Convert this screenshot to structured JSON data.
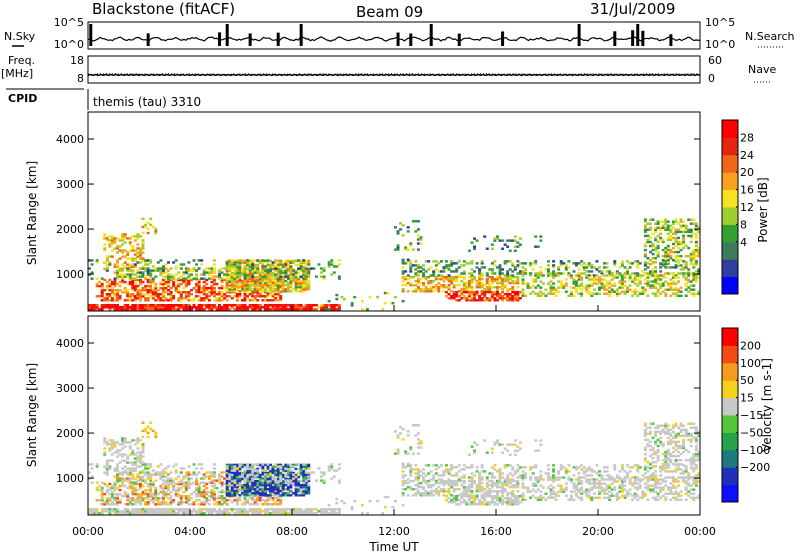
{
  "header": {
    "station": "Blackstone (fitACF)",
    "beam": "Beam 09",
    "date": "31/Jul/2009"
  },
  "side_labels": {
    "nsky": "N.Sky",
    "freq": "Freq.",
    "freq_unit": "[MHz]",
    "cpid": "CPID",
    "nsearch": "N.Search",
    "nave": "Nave"
  },
  "cpid_text": "themis (tau) 3310",
  "chart_data": [
    {
      "type": "line",
      "panel": "noise",
      "left_ticks": [
        "10^5",
        "10^0"
      ],
      "right_ticks": [
        "10^5",
        "10^0"
      ],
      "series": [
        {
          "name": "N.Sky"
        },
        {
          "name": "N.Search"
        }
      ],
      "description_level": "Baseline noise about 10^1, spikes toward 10^5"
    },
    {
      "type": "line",
      "panel": "freq_nave",
      "left_ticks": [
        "18",
        "8"
      ],
      "right_ticks": [
        "60",
        "0"
      ],
      "ylim_left": [
        8,
        18
      ],
      "ylim_right": [
        0,
        60
      ],
      "series": [
        {
          "name": "Freq."
        },
        {
          "name": "Nave"
        }
      ]
    },
    {
      "type": "heatmap",
      "panel": "power",
      "ylabel": "Slant Range [km]",
      "y_ticks": [
        "4000",
        "3000",
        "2000",
        "1000"
      ],
      "ylim": [
        180,
        4600
      ],
      "colorbar_label": "Power [dB]",
      "colorbar_ticks": [
        "28",
        "24",
        "20",
        "16",
        "12",
        "8",
        "4"
      ],
      "colors": [
        "#0000ff",
        "#2f3f9f",
        "#3c7c5c",
        "#33a033",
        "#9fcf2f",
        "#f7e21f",
        "#f7a21f",
        "#f26618",
        "#e42610",
        "#ff0000"
      ],
      "regions": [
        {
          "t0": 0.0,
          "t1": 9.8,
          "r0": 180,
          "r1": 1200,
          "level": "high"
        },
        {
          "t0": 0.7,
          "t1": 3.0,
          "r0": 1200,
          "r1": 2300,
          "level": "medium"
        },
        {
          "t0": 12.3,
          "t1": 24.0,
          "r0": 180,
          "r1": 1300,
          "level": "medium"
        },
        {
          "t0": 14.7,
          "t1": 24.0,
          "r0": 1300,
          "r1": 2200,
          "level": "medium"
        }
      ]
    },
    {
      "type": "heatmap",
      "panel": "velocity",
      "ylabel": "Slant Range [km]",
      "xlabel": "Time UT",
      "y_ticks": [
        "4000",
        "3000",
        "2000",
        "1000"
      ],
      "x_ticks": [
        "00:00",
        "04:00",
        "08:00",
        "12:00",
        "16:00",
        "20:00",
        "00:00"
      ],
      "xlim_hours": [
        0,
        24
      ],
      "ylim": [
        180,
        4600
      ],
      "colorbar_label": "Velocity [m s-1]",
      "colorbar_ticks": [
        "200",
        "100",
        "50",
        "15",
        "−15",
        "−50",
        "−100",
        "−200"
      ],
      "colors": [
        "#ff0000",
        "#f24c14",
        "#f79a1f",
        "#f5d21a",
        "#c8c8c8",
        "#54c63c",
        "#25a24a",
        "#1f7a7a",
        "#2030b8",
        "#1010ff"
      ]
    }
  ]
}
